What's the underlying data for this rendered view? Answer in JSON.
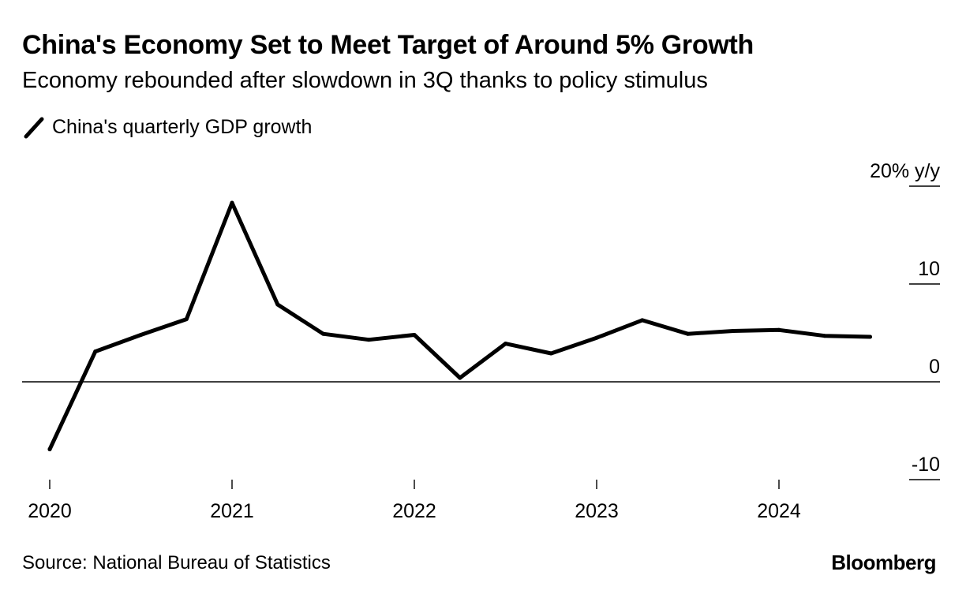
{
  "chart_data": {
    "type": "line",
    "title": "China's Economy Set to Meet Target of Around 5% Growth",
    "subtitle": "Economy rebounded after slowdown in 3Q thanks to policy stimulus",
    "legend": [
      "China's quarterly GDP growth"
    ],
    "ylabel": "20% y/y",
    "ylim": [
      -10,
      20
    ],
    "y_ticks": [
      {
        "value": 20,
        "label": "20% y/y"
      },
      {
        "value": 10,
        "label": "10"
      },
      {
        "value": 0,
        "label": "0"
      },
      {
        "value": -10,
        "label": "-10"
      }
    ],
    "x_ticks": [
      {
        "year": 2020,
        "label": "2020"
      },
      {
        "year": 2021,
        "label": "2021"
      },
      {
        "year": 2022,
        "label": "2022"
      },
      {
        "year": 2023,
        "label": "2023"
      },
      {
        "year": 2024,
        "label": "2024"
      }
    ],
    "series": [
      {
        "name": "China's quarterly GDP growth",
        "color": "#000000",
        "x": [
          "2020 Q1",
          "2020 Q2",
          "2020 Q3",
          "2020 Q4",
          "2021 Q1",
          "2021 Q2",
          "2021 Q3",
          "2021 Q4",
          "2022 Q1",
          "2022 Q2",
          "2022 Q3",
          "2022 Q4",
          "2023 Q1",
          "2023 Q2",
          "2023 Q3",
          "2023 Q4",
          "2024 Q1",
          "2024 Q2",
          "2024 Q3"
        ],
        "values": [
          -6.9,
          3.1,
          4.8,
          6.4,
          18.3,
          7.9,
          4.9,
          4.3,
          4.8,
          0.4,
          3.9,
          2.9,
          4.5,
          6.3,
          4.9,
          5.2,
          5.3,
          4.7,
          4.6
        ]
      }
    ],
    "grid": false
  },
  "footer": {
    "source": "Source: National Bureau of Statistics",
    "brand": "Bloomberg"
  }
}
